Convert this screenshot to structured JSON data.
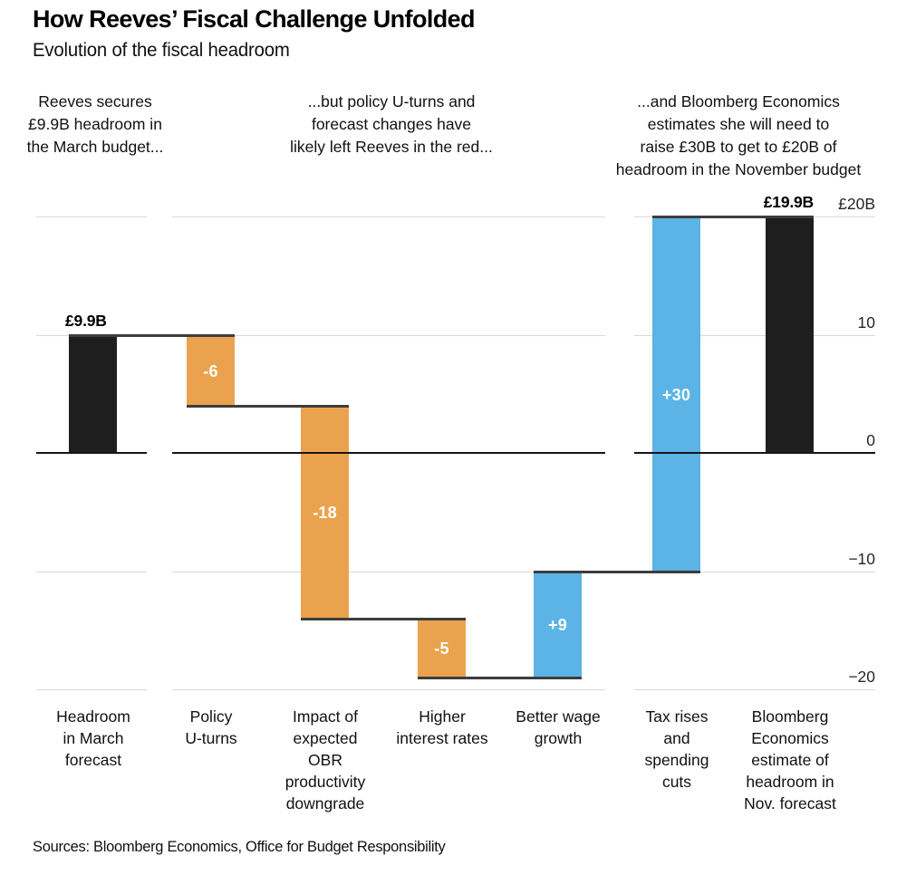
{
  "chart_data": {
    "type": "waterfall",
    "title": "How Reeves’ Fiscal Challenge Unfolded",
    "subtitle": "Evolution of the fiscal headroom",
    "source": "Sources: Bloomberg Economics, Office for Budget Responsibility",
    "currency": "GBP billions",
    "ylim": [
      -20,
      20
    ],
    "grid_on": true,
    "grid_values": [
      20,
      10,
      -10,
      -20
    ],
    "has_zero_line": true,
    "legend": "none",
    "yaxis_position": "right",
    "yticks": [
      {
        "label": "£20B",
        "value": 20
      },
      {
        "label": "10",
        "value": 10
      },
      {
        "label": "0",
        "value": 0
      },
      {
        "label": "−10",
        "value": -10
      },
      {
        "label": "−20",
        "value": -20
      }
    ],
    "annotations": [
      {
        "text": "Reeves secures £9.9B headroom in the March budget...",
        "lines": [
          "Reeves secures",
          "£9.9B headroom in",
          "the March budget..."
        ]
      },
      {
        "text": "...but policy U-turns and forecast changes have likely left Reeves in the red...",
        "lines": [
          "...but policy U-turns and",
          "forecast changes have",
          "likely left Reeves in the red..."
        ]
      },
      {
        "text": "...and Bloomberg Economics estimates she will need to raise £30B to get to £20B of headroom in the November budget",
        "lines": [
          "...and Bloomberg Economics",
          "estimates she will need to",
          "raise £30B to get to £20B of",
          "headroom in the November budget"
        ]
      }
    ],
    "bars": [
      {
        "name": "Headroom in March forecast",
        "lines": [
          "Headroom",
          "in March",
          "forecast"
        ],
        "role": "total",
        "start": 0,
        "end": 9.9,
        "value": 9.9,
        "label": "£9.9B",
        "label_pos": "above-left",
        "group": 0
      },
      {
        "name": "Policy U-turns",
        "lines": [
          "Policy",
          "U-turns"
        ],
        "role": "decrease",
        "start": 9.9,
        "end": 3.9,
        "value": -6,
        "label": "-6",
        "label_pos": "inside",
        "group": 1
      },
      {
        "name": "Impact of expected OBR productivity downgrade",
        "lines": [
          "Impact of",
          "expected",
          "OBR",
          "productivity",
          "downgrade"
        ],
        "role": "decrease",
        "start": 3.9,
        "end": -14.1,
        "value": -18,
        "label": "-18",
        "label_pos": "inside",
        "group": 1
      },
      {
        "name": "Higher interest rates",
        "lines": [
          "Higher",
          "interest rates"
        ],
        "role": "decrease",
        "start": -14.1,
        "end": -19.1,
        "value": -5,
        "label": "-5",
        "label_pos": "inside",
        "group": 1
      },
      {
        "name": "Better wage growth",
        "lines": [
          "Better wage",
          "growth"
        ],
        "role": "increase",
        "start": -19.1,
        "end": -10.1,
        "value": 9,
        "label": "+9",
        "label_pos": "inside",
        "group": 1
      },
      {
        "name": "Tax rises and spending cuts",
        "lines": [
          "Tax rises",
          "and",
          "spending",
          "cuts"
        ],
        "role": "increase",
        "start": -10.1,
        "end": 19.9,
        "value": 30,
        "label": "+30",
        "label_pos": "inside",
        "group": 2
      },
      {
        "name": "Bloomberg Economics estimate of headroom in Nov. forecast",
        "lines": [
          "Bloomberg",
          "Economics",
          "estimate of",
          "headroom in",
          "Nov. forecast"
        ],
        "role": "total",
        "start": 0,
        "end": 19.9,
        "value": 19.9,
        "label": "£19.9B",
        "label_pos": "above-right",
        "group": 2
      }
    ]
  },
  "colors": {
    "total": "#1e1e1e",
    "decrease": "#eba24e",
    "increase": "#5bb3e6",
    "grid": "#d9d9d9",
    "zero_line": "#161616",
    "connector": "#3d3d3d",
    "inner_label": "#ffffff",
    "text": "#111111"
  }
}
